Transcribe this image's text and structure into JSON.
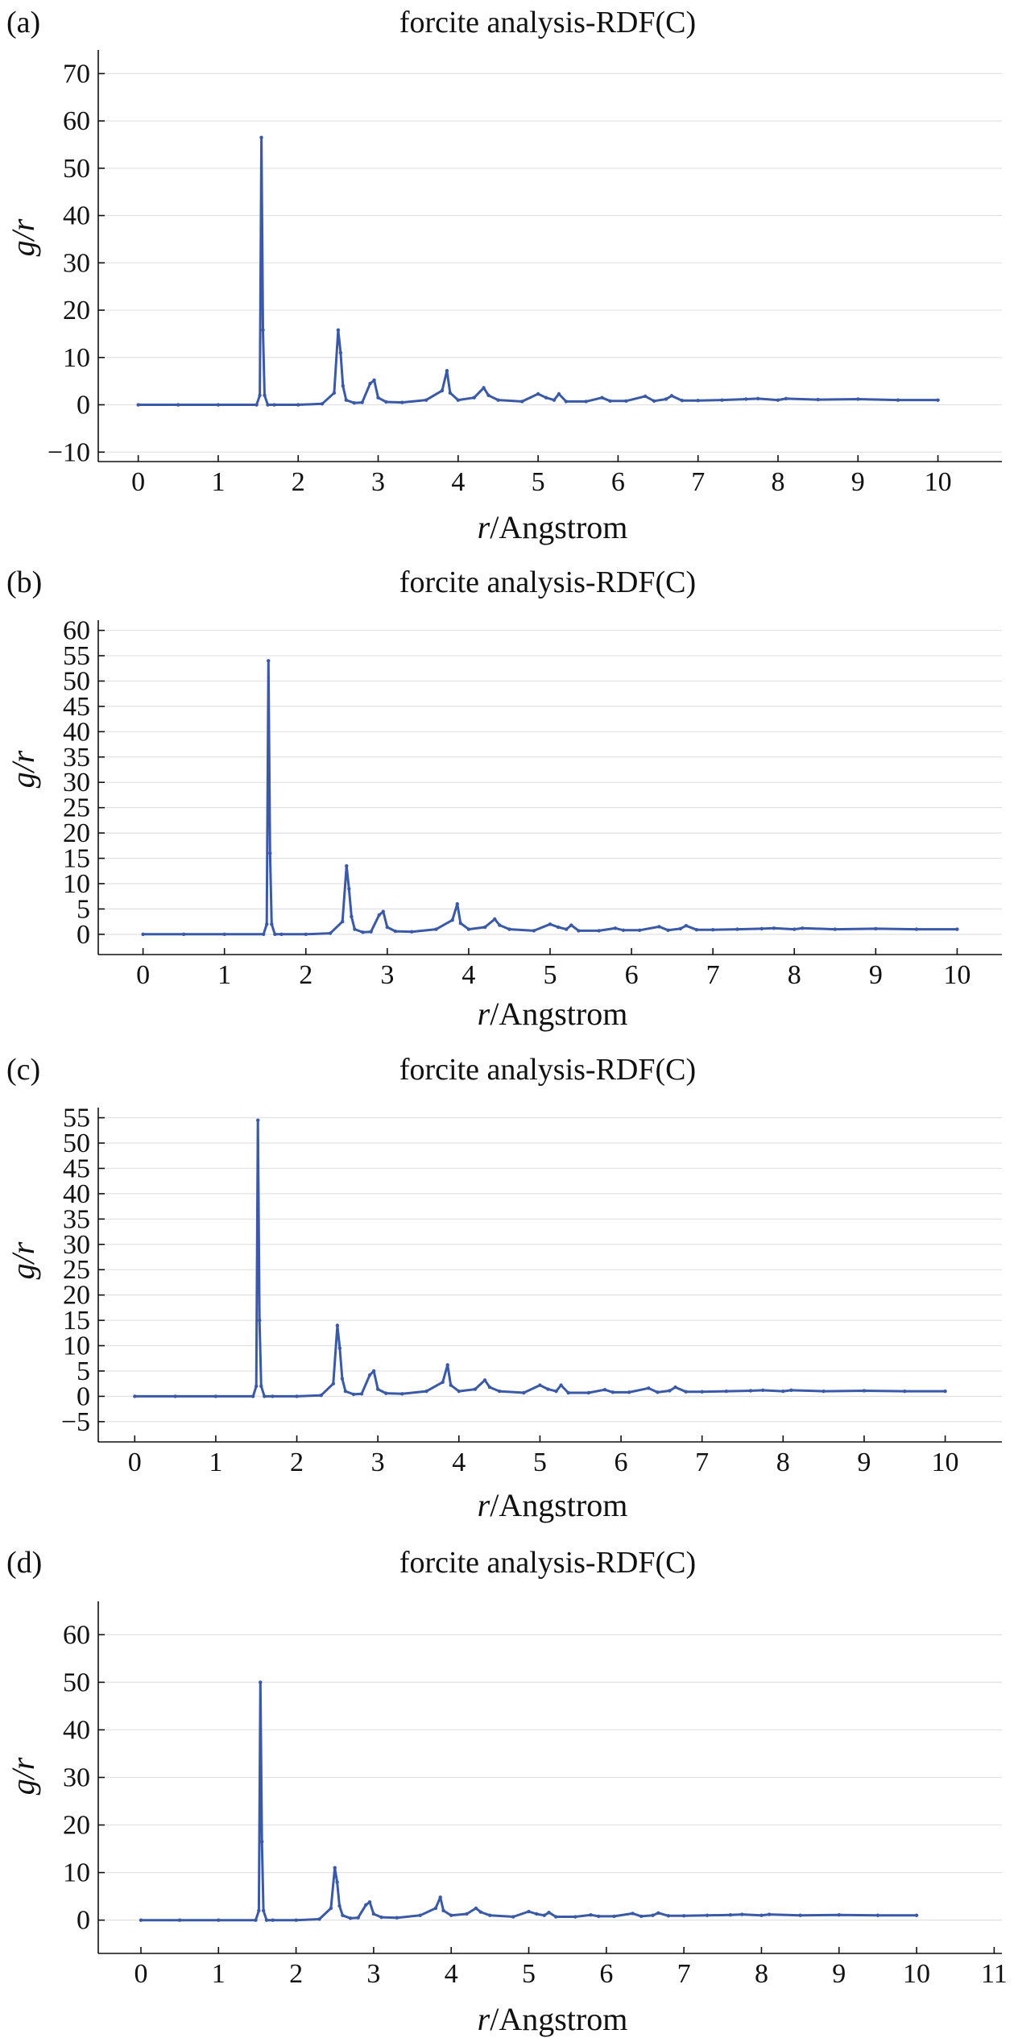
{
  "chart_data": [
    {
      "panel": "(a)",
      "type": "line",
      "title": "forcite analysis-RDF(C)",
      "xlabel": "r/Angstrom",
      "ylabel": "g/r",
      "xlim": [
        -0.5,
        10.8
      ],
      "ylim": [
        -12,
        75
      ],
      "xticks": [
        0,
        1,
        2,
        3,
        4,
        5,
        6,
        7,
        8,
        9,
        10
      ],
      "yticks": [
        -10,
        0,
        10,
        20,
        30,
        40,
        50,
        60,
        70
      ],
      "grid": "horizontal",
      "series": [
        {
          "color": "#3a5aa8",
          "x": [
            0,
            0.5,
            1.0,
            1.48,
            1.52,
            1.54,
            1.56,
            1.58,
            1.62,
            1.7,
            2.0,
            2.3,
            2.45,
            2.5,
            2.53,
            2.56,
            2.6,
            2.7,
            2.8,
            2.9,
            2.95,
            3.0,
            3.1,
            3.3,
            3.6,
            3.8,
            3.86,
            3.9,
            4.0,
            4.2,
            4.32,
            4.38,
            4.5,
            4.8,
            5.0,
            5.1,
            5.2,
            5.26,
            5.35,
            5.6,
            5.8,
            5.9,
            6.1,
            6.34,
            6.45,
            6.6,
            6.67,
            6.8,
            7.0,
            7.3,
            7.6,
            7.75,
            8.0,
            8.1,
            8.5,
            9.0,
            9.5,
            10.0
          ],
          "y": [
            0,
            0,
            0,
            0,
            2,
            56.5,
            15.8,
            2,
            0,
            0,
            0,
            0.2,
            2.5,
            15.8,
            11,
            4,
            1,
            0.4,
            0.5,
            4.5,
            5.2,
            1.5,
            0.6,
            0.5,
            1,
            3,
            7.2,
            2.5,
            1,
            1.5,
            3.6,
            2,
            1,
            0.7,
            2.3,
            1.5,
            1,
            2.3,
            0.7,
            0.7,
            1.5,
            0.8,
            0.8,
            1.8,
            0.8,
            1.2,
            1.9,
            0.9,
            0.9,
            1,
            1.2,
            1.3,
            1,
            1.3,
            1.1,
            1.2,
            1,
            1
          ]
        }
      ]
    },
    {
      "panel": "(b)",
      "type": "line",
      "title": "forcite analysis-RDF(C)",
      "xlabel": "r/Angstrom",
      "ylabel": "g/r",
      "xlim": [
        -0.55,
        10.55
      ],
      "ylim": [
        -4,
        62
      ],
      "xticks": [
        0,
        1,
        2,
        3,
        4,
        5,
        6,
        7,
        8,
        9,
        10
      ],
      "yticks": [
        0,
        5,
        10,
        15,
        20,
        25,
        30,
        35,
        40,
        45,
        50,
        55,
        60
      ],
      "grid": "horizontal",
      "series": [
        {
          "color": "#3a5aa8",
          "x": [
            0,
            0.5,
            1.0,
            1.48,
            1.52,
            1.54,
            1.56,
            1.58,
            1.62,
            1.7,
            2.0,
            2.3,
            2.45,
            2.5,
            2.53,
            2.56,
            2.6,
            2.7,
            2.8,
            2.9,
            2.95,
            3.0,
            3.1,
            3.3,
            3.6,
            3.8,
            3.86,
            3.9,
            4.0,
            4.2,
            4.32,
            4.38,
            4.5,
            4.8,
            5.0,
            5.1,
            5.2,
            5.26,
            5.35,
            5.6,
            5.8,
            5.9,
            6.1,
            6.34,
            6.45,
            6.6,
            6.67,
            6.8,
            7.0,
            7.3,
            7.6,
            7.75,
            8.0,
            8.1,
            8.5,
            9.0,
            9.5,
            10.0
          ],
          "y": [
            0,
            0,
            0,
            0,
            2,
            54,
            16,
            2,
            0,
            0,
            0,
            0.2,
            2.5,
            13.5,
            9,
            3.5,
            1,
            0.4,
            0.5,
            3.8,
            4.5,
            1.4,
            0.6,
            0.5,
            1,
            2.8,
            6,
            2.2,
            1,
            1.4,
            3,
            1.8,
            1,
            0.7,
            2,
            1.4,
            1,
            1.8,
            0.7,
            0.7,
            1.2,
            0.8,
            0.8,
            1.5,
            0.8,
            1.1,
            1.7,
            0.9,
            0.9,
            1,
            1.1,
            1.2,
            1,
            1.2,
            1,
            1.1,
            1,
            1
          ]
        }
      ]
    },
    {
      "panel": "(c)",
      "type": "line",
      "title": "forcite analysis-RDF(C)",
      "xlabel": "r/Angstrom",
      "ylabel": "g/r",
      "xlim": [
        -0.45,
        10.7
      ],
      "ylim": [
        -9,
        57
      ],
      "xticks": [
        0,
        1,
        2,
        3,
        4,
        5,
        6,
        7,
        8,
        9,
        10
      ],
      "yticks": [
        -5,
        0,
        5,
        10,
        15,
        20,
        25,
        30,
        35,
        40,
        45,
        50,
        55
      ],
      "grid": "horizontal",
      "series": [
        {
          "color": "#3a5aa8",
          "x": [
            0,
            0.5,
            1.0,
            1.46,
            1.5,
            1.52,
            1.54,
            1.56,
            1.6,
            1.7,
            2.0,
            2.3,
            2.45,
            2.5,
            2.53,
            2.56,
            2.6,
            2.7,
            2.8,
            2.9,
            2.95,
            3.0,
            3.1,
            3.3,
            3.6,
            3.8,
            3.86,
            3.9,
            4.0,
            4.2,
            4.32,
            4.38,
            4.5,
            4.8,
            5.0,
            5.1,
            5.2,
            5.26,
            5.35,
            5.6,
            5.8,
            5.9,
            6.1,
            6.34,
            6.45,
            6.6,
            6.67,
            6.8,
            7.0,
            7.3,
            7.6,
            7.75,
            8.0,
            8.1,
            8.5,
            9.0,
            9.5,
            10.0
          ],
          "y": [
            0,
            0,
            0,
            0,
            2,
            54.5,
            15,
            2,
            0,
            0,
            0,
            0.2,
            2.5,
            14,
            9.5,
            3.5,
            1,
            0.4,
            0.5,
            4.2,
            5,
            1.4,
            0.6,
            0.5,
            1,
            2.8,
            6.2,
            2.2,
            1,
            1.4,
            3.2,
            1.8,
            1,
            0.7,
            2.2,
            1.4,
            1,
            2.2,
            0.7,
            0.7,
            1.3,
            0.8,
            0.8,
            1.6,
            0.8,
            1.1,
            1.8,
            0.9,
            0.9,
            1,
            1.1,
            1.2,
            1,
            1.2,
            1,
            1.1,
            1,
            1
          ]
        }
      ]
    },
    {
      "panel": "(d)",
      "type": "line",
      "title": "forcite analysis-RDF(C)",
      "xlabel": "r/Angstrom",
      "ylabel": "g/r",
      "xlim": [
        -0.55,
        11.1
      ],
      "ylim": [
        -7,
        67
      ],
      "xticks": [
        0,
        1,
        2,
        3,
        4,
        5,
        6,
        7,
        8,
        9,
        10,
        11
      ],
      "yticks": [
        0,
        10,
        20,
        30,
        40,
        50,
        60
      ],
      "grid": "horizontal",
      "series": [
        {
          "color": "#3a5aa8",
          "x": [
            0,
            0.5,
            1.0,
            1.48,
            1.52,
            1.54,
            1.56,
            1.58,
            1.62,
            1.7,
            2.0,
            2.3,
            2.45,
            2.5,
            2.53,
            2.56,
            2.6,
            2.7,
            2.8,
            2.9,
            2.95,
            3.0,
            3.1,
            3.3,
            3.6,
            3.8,
            3.86,
            3.9,
            4.0,
            4.2,
            4.32,
            4.38,
            4.5,
            4.8,
            5.0,
            5.1,
            5.2,
            5.26,
            5.35,
            5.6,
            5.8,
            5.9,
            6.1,
            6.34,
            6.45,
            6.6,
            6.67,
            6.8,
            7.0,
            7.3,
            7.6,
            7.75,
            8.0,
            8.1,
            8.5,
            9.0,
            9.5,
            10.0
          ],
          "y": [
            0,
            0,
            0,
            0,
            2,
            50,
            16.5,
            2,
            0,
            0,
            0,
            0.2,
            2.5,
            11,
            8,
            3,
            1,
            0.4,
            0.5,
            3.2,
            3.8,
            1.3,
            0.6,
            0.5,
            1,
            2.5,
            4.8,
            2,
            1,
            1.3,
            2.5,
            1.7,
            1,
            0.7,
            1.8,
            1.3,
            1,
            1.6,
            0.7,
            0.7,
            1.1,
            0.8,
            0.8,
            1.4,
            0.8,
            1,
            1.5,
            0.9,
            0.9,
            1,
            1.1,
            1.2,
            1,
            1.2,
            1,
            1.1,
            1,
            1
          ]
        }
      ]
    }
  ]
}
